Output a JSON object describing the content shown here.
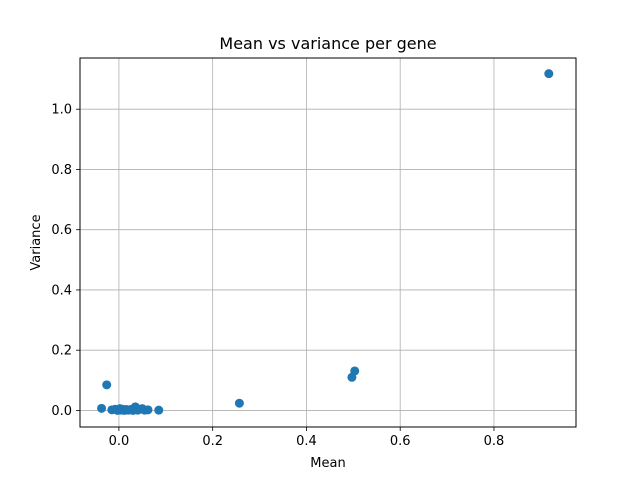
{
  "chart_data": {
    "type": "scatter",
    "title": "Mean vs variance per gene",
    "xlabel": "Mean",
    "ylabel": "Variance",
    "xlim": [
      -0.083,
      0.975
    ],
    "ylim": [
      -0.055,
      1.17
    ],
    "x_ticks": [
      0.0,
      0.2,
      0.4,
      0.6,
      0.8
    ],
    "x_tick_labels": [
      "0.0",
      "0.2",
      "0.4",
      "0.6",
      "0.8"
    ],
    "y_ticks": [
      0.0,
      0.2,
      0.4,
      0.6,
      0.8,
      1.0
    ],
    "y_tick_labels": [
      "0.0",
      "0.2",
      "0.4",
      "0.6",
      "0.8",
      "1.0"
    ],
    "grid": true,
    "color": "#1f77b4",
    "points": [
      {
        "x": 0.917,
        "y": 1.118
      },
      {
        "x": 0.503,
        "y": 0.131
      },
      {
        "x": 0.497,
        "y": 0.11
      },
      {
        "x": 0.257,
        "y": 0.024
      },
      {
        "x": -0.026,
        "y": 0.085
      },
      {
        "x": -0.037,
        "y": 0.007
      },
      {
        "x": -0.015,
        "y": 0.002
      },
      {
        "x": -0.008,
        "y": 0.004
      },
      {
        "x": -0.003,
        "y": 0.0
      },
      {
        "x": 0.002,
        "y": 0.006
      },
      {
        "x": 0.005,
        "y": 0.001
      },
      {
        "x": 0.008,
        "y": 0.004
      },
      {
        "x": 0.012,
        "y": 0.0
      },
      {
        "x": 0.016,
        "y": 0.003
      },
      {
        "x": 0.02,
        "y": 0.001
      },
      {
        "x": 0.025,
        "y": 0.003
      },
      {
        "x": 0.03,
        "y": 0.0
      },
      {
        "x": 0.035,
        "y": 0.012
      },
      {
        "x": 0.04,
        "y": 0.001
      },
      {
        "x": 0.045,
        "y": 0.004
      },
      {
        "x": 0.05,
        "y": 0.006
      },
      {
        "x": 0.055,
        "y": 0.001
      },
      {
        "x": 0.062,
        "y": 0.002
      },
      {
        "x": 0.085,
        "y": 0.001
      }
    ]
  }
}
